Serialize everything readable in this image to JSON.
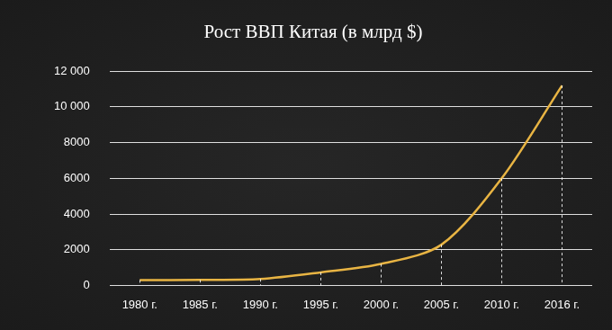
{
  "chart_data": {
    "type": "line",
    "title": "Рост ВВП Китая (в млрд $)",
    "categories": [
      "1980 г.",
      "1985 г.",
      "1990 г.",
      "1995 г.",
      "2000 г.",
      "2005 г.",
      "2010 г.",
      "2016 г."
    ],
    "values": [
      300,
      310,
      360,
      730,
      1200,
      2280,
      6000,
      11200
    ],
    "color": "#e8b443",
    "ylim": [
      0,
      12000
    ],
    "yticks": [
      0,
      2000,
      4000,
      6000,
      8000,
      {
        "value": 10000,
        "label": "10 000"
      },
      {
        "value": 12000,
        "label": "12 000"
      }
    ],
    "grid": true
  }
}
